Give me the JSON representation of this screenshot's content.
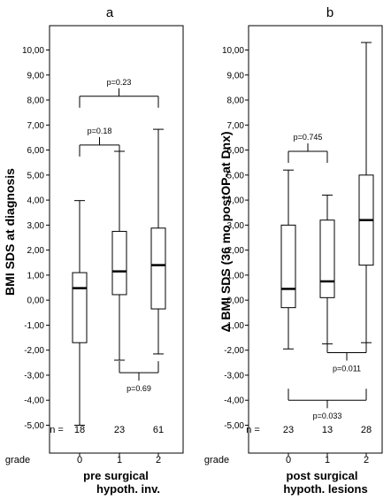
{
  "chart_data": [
    {
      "type": "box",
      "panel_label": "a",
      "ylabel": "BMI SDS at diagnosis",
      "xlabel_line1": "pre surgical",
      "xlabel_line2": "hypoth. inv.",
      "x_prefix": "grade",
      "n_prefix": "n =",
      "ylim": [
        -5.4,
        10.5
      ],
      "y_ticks": [
        "-5,00",
        "-4,00",
        "-3,00",
        "-2,00",
        "-1,00",
        "0,00",
        "1,00",
        "2,00",
        "3,00",
        "4,00",
        "5,00",
        "6,00",
        "7,00",
        "8,00",
        "9,00",
        "10,00"
      ],
      "categories": [
        "0",
        "1",
        "2"
      ],
      "n": [
        "18",
        "23",
        "61"
      ],
      "boxes": [
        {
          "min": -5.0,
          "q1": -1.7,
          "median": 0.48,
          "q3": 1.1,
          "max": 3.98
        },
        {
          "min": -2.4,
          "q1": 0.22,
          "median": 1.15,
          "q3": 2.75,
          "max": 5.95
        },
        {
          "min": -2.15,
          "q1": -0.35,
          "median": 1.4,
          "q3": 2.88,
          "max": 6.83
        }
      ],
      "comparisons": [
        {
          "from": 0,
          "to": 1,
          "label": "p=0.18",
          "y": 6.2,
          "side": "top"
        },
        {
          "from": 0,
          "to": 2,
          "label": "p=0.23",
          "y": 8.15,
          "side": "top"
        },
        {
          "from": 1,
          "to": 2,
          "label": "p=0.69",
          "y": -2.9,
          "side": "bottom"
        }
      ]
    },
    {
      "type": "box",
      "panel_label": "b",
      "ylabel": "Δ BMI SDS (36 mo postOP-at Dnx)",
      "xlabel_line1": "post surgical",
      "xlabel_line2": "hypoth. lesions",
      "x_prefix": "grade",
      "n_prefix": "n =",
      "ylim": [
        -5.4,
        10.5
      ],
      "y_ticks": [
        "-5,00",
        "-4,00",
        "-3,00",
        "-2,00",
        "-1,00",
        "0,00",
        "1,00",
        "2,00",
        "3,00",
        "4,00",
        "5,00",
        "6,00",
        "7,00",
        "8,00",
        "9,00",
        "10,00"
      ],
      "categories": [
        "0",
        "1",
        "2"
      ],
      "n": [
        "23",
        "13",
        "28"
      ],
      "boxes": [
        {
          "min": -1.95,
          "q1": -0.3,
          "median": 0.45,
          "q3": 3.0,
          "max": 5.2
        },
        {
          "min": -1.75,
          "q1": 0.1,
          "median": 0.75,
          "q3": 3.2,
          "max": 4.2
        },
        {
          "min": -1.7,
          "q1": 1.4,
          "median": 3.2,
          "q3": 5.0,
          "max": 10.3
        }
      ],
      "comparisons": [
        {
          "from": 0,
          "to": 1,
          "label": "p=0.745",
          "y": 5.95,
          "side": "top"
        },
        {
          "from": 1,
          "to": 2,
          "label": "p=0.011",
          "y": -2.1,
          "side": "bottom"
        },
        {
          "from": 0,
          "to": 2,
          "label": "p=0.033",
          "y": -4.0,
          "side": "bottom"
        }
      ]
    }
  ]
}
